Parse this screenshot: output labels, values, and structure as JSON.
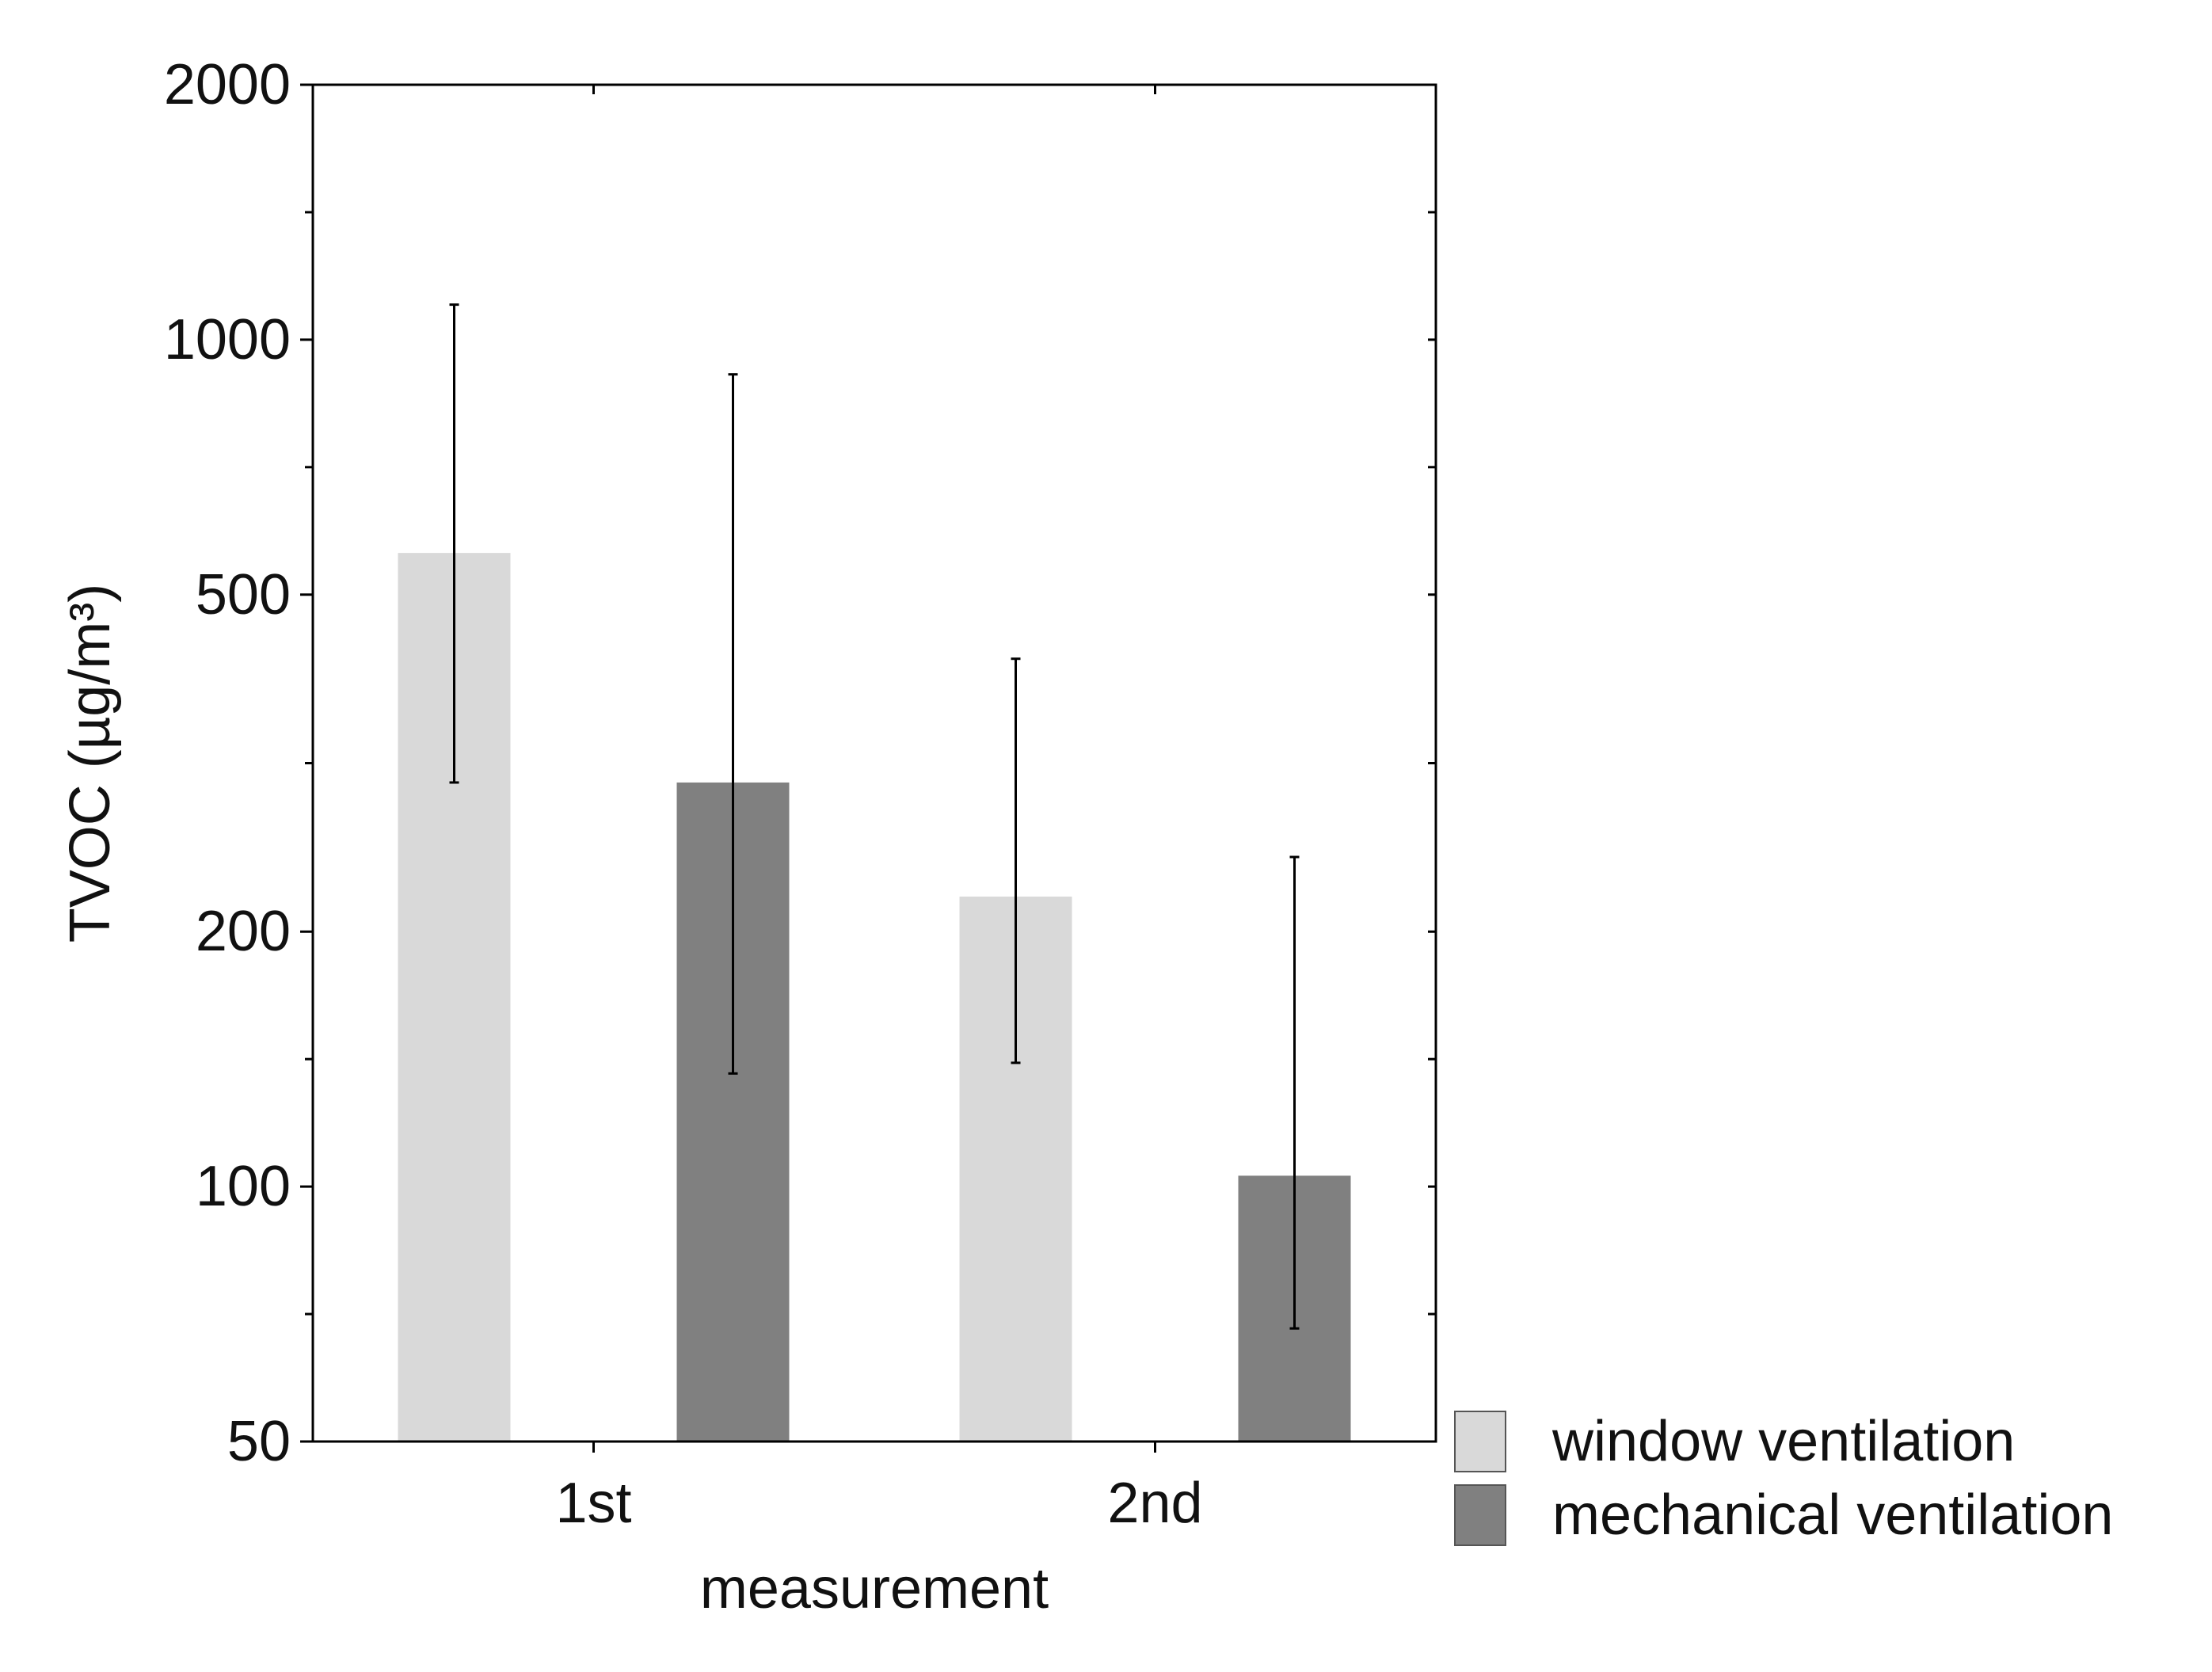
{
  "chart_data": {
    "type": "bar",
    "title": "",
    "xlabel": "measurement",
    "ylabel": "TVOC (µg/m³)",
    "yscale": "log",
    "ylim": [
      50,
      2000
    ],
    "yticks": [
      50,
      100,
      200,
      500,
      1000,
      2000
    ],
    "ytick_labels": [
      "50",
      "100",
      "200",
      "500",
      "1000",
      "2000"
    ],
    "categories": [
      "1st",
      "2nd"
    ],
    "grid": false,
    "legend_position": "bottom-right outside",
    "series": [
      {
        "name": "window ventilation",
        "color": "#d9d9d9",
        "values": [
          560,
          220
        ],
        "error_low": [
          300,
          140
        ],
        "error_high": [
          1100,
          420
        ]
      },
      {
        "name": "mechanical ventilation",
        "color": "#808080",
        "values": [
          300,
          103
        ],
        "error_low": [
          136,
          68
        ],
        "error_high": [
          910,
          245
        ]
      }
    ]
  }
}
